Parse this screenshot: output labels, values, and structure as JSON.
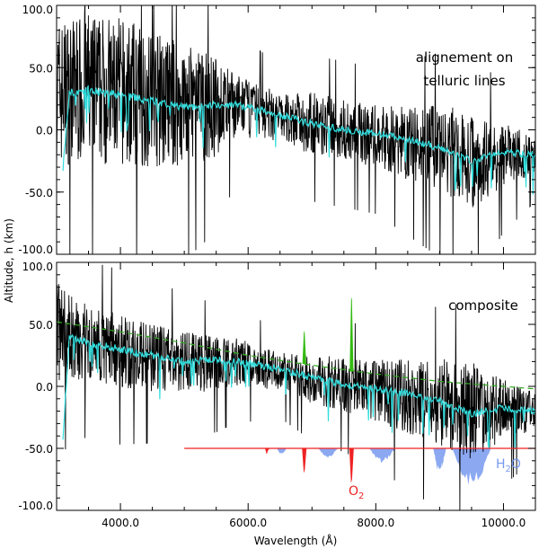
{
  "chart_data": [
    {
      "type": "line",
      "panel": "top",
      "annotation_lines": [
        "alignement on",
        "telluric lines"
      ],
      "xlim": [
        3000,
        10500
      ],
      "ylim": [
        -100,
        100
      ],
      "y_ticks": [
        "100.0",
        "50.0",
        "0.0",
        "-50.0",
        "-100.0"
      ],
      "series": [
        {
          "name": "altitude (black, noisy)",
          "color": "#000000",
          "x": [
            3000,
            3500,
            4000,
            4500,
            5000,
            5500,
            5800,
            6500,
            7000,
            7500,
            8000,
            8500,
            9000,
            9500,
            10000,
            10500
          ],
          "y": [
            30,
            35,
            30,
            25,
            20,
            18,
            20,
            10,
            5,
            0,
            -5,
            -10,
            -15,
            -25,
            -20,
            -20
          ],
          "noise": [
            60,
            60,
            60,
            55,
            50,
            40,
            25,
            20,
            25,
            25,
            25,
            30,
            35,
            40,
            25,
            15
          ]
        },
        {
          "name": "smoothed (cyan)",
          "color": "#33dddd",
          "x": [
            3100,
            3200,
            3500,
            4000,
            4500,
            5000,
            5500,
            5800,
            6500,
            7000,
            7500,
            8000,
            8500,
            9000,
            9500,
            10000,
            10500
          ],
          "y": [
            -30,
            30,
            32,
            28,
            23,
            18,
            20,
            20,
            12,
            5,
            0,
            -3,
            -8,
            -14,
            -25,
            -18,
            -20
          ]
        }
      ]
    },
    {
      "type": "line",
      "panel": "bottom",
      "annotation_lines": [
        "composite"
      ],
      "xlim": [
        3000,
        10500
      ],
      "ylim": [
        -100,
        100
      ],
      "y_ticks": [
        "100.0",
        "50.0",
        "0.0",
        "-50.0",
        "-100.0"
      ],
      "x_ticks": [
        "4000.0",
        "6000.0",
        "8000.0",
        "10000.0"
      ],
      "y_label": "Altitude, h (km)",
      "x_label": "Wavelength (Å)",
      "series": [
        {
          "name": "altitude (black, noisy)",
          "color": "#000000",
          "x": [
            3000,
            3500,
            4000,
            4500,
            5000,
            5500,
            5800,
            6500,
            7000,
            7500,
            8000,
            8500,
            9000,
            9500,
            10000,
            10500
          ],
          "y": [
            45,
            35,
            28,
            24,
            20,
            18,
            20,
            12,
            6,
            2,
            -3,
            -8,
            -12,
            -20,
            -18,
            -20
          ],
          "noise": [
            40,
            30,
            30,
            28,
            25,
            22,
            20,
            15,
            20,
            22,
            25,
            30,
            35,
            40,
            25,
            15
          ]
        },
        {
          "name": "smoothed (cyan)",
          "color": "#33dddd",
          "x": [
            3100,
            3200,
            3500,
            4000,
            4500,
            5000,
            5500,
            5800,
            6500,
            7000,
            7500,
            8000,
            8500,
            9000,
            9500,
            10000,
            10500
          ],
          "y": [
            -40,
            40,
            35,
            30,
            25,
            20,
            22,
            20,
            14,
            7,
            2,
            -2,
            -6,
            -12,
            -22,
            -17,
            -20
          ]
        },
        {
          "name": "green dashed trend",
          "color": "#33aa22",
          "dashed": true,
          "x": [
            3000,
            4000,
            5000,
            6000,
            7000,
            8000,
            9000,
            10000,
            10500
          ],
          "y": [
            52,
            44,
            35,
            25,
            17,
            10,
            4,
            0,
            -2
          ]
        },
        {
          "name": "transmission baseline (red)",
          "color": "#ee2222",
          "x": [
            5000,
            10500
          ],
          "y": [
            -50,
            -50
          ]
        }
      ],
      "green_spikes": [
        {
          "x": 6880,
          "top": 45,
          "bottom": 18
        },
        {
          "x": 7620,
          "top": 72,
          "bottom": 12
        }
      ],
      "absorption_o2": [
        {
          "x": 6300,
          "depth": -55
        },
        {
          "x": 6880,
          "depth": -70
        },
        {
          "x": 7620,
          "depth": -78
        }
      ],
      "absorption_h2o": [
        {
          "x0": 6450,
          "x1": 6600,
          "depth": -55
        },
        {
          "x0": 7100,
          "x1": 7400,
          "depth": -58
        },
        {
          "x0": 7900,
          "x1": 8300,
          "depth": -62
        },
        {
          "x0": 8900,
          "x1": 9100,
          "depth": -70
        },
        {
          "x0": 9200,
          "x1": 9800,
          "depth": -82
        }
      ],
      "label_o2": "O",
      "label_o2_sub": "2",
      "label_h2o_a": "H",
      "label_h2o_sub": "2",
      "label_h2o_b": "O"
    }
  ]
}
